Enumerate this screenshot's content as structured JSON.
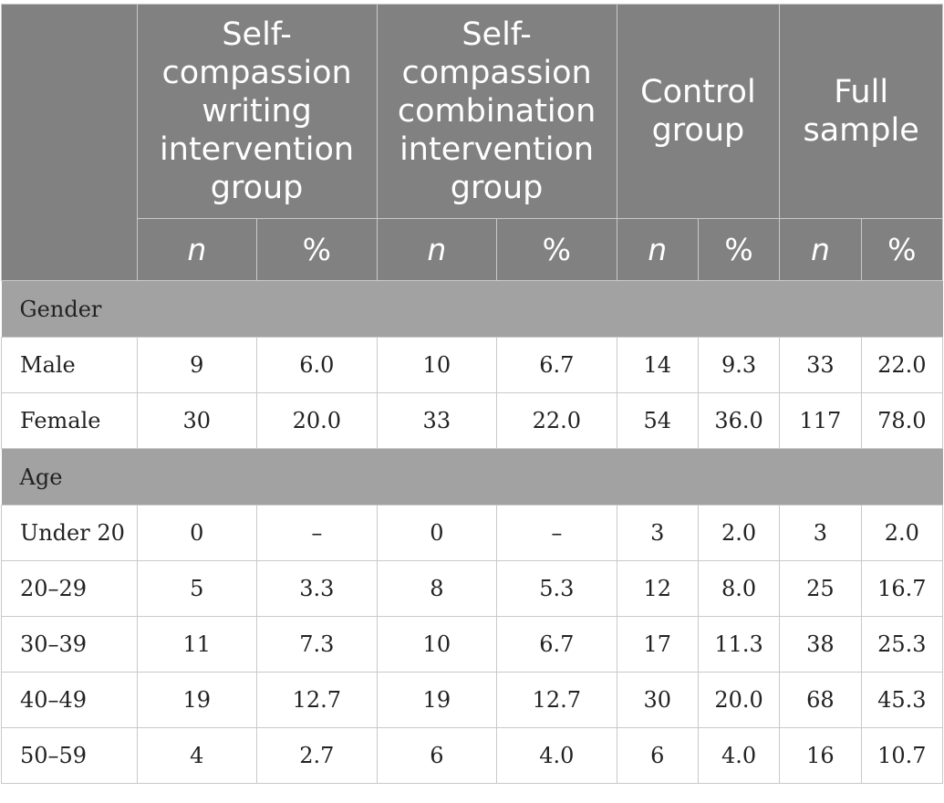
{
  "table": {
    "group_headers": [
      "Self-compassion writing intervention group",
      "Self-compassion combination intervention group",
      "Control group",
      "Full sample"
    ],
    "sub_headers": [
      "n",
      "%",
      "n",
      "%",
      "n",
      "%",
      "n",
      "%"
    ],
    "sections": [
      {
        "title": "Gender",
        "rows": [
          {
            "label": "Male",
            "cells": [
              "9",
              "6.0",
              "10",
              "6.7",
              "14",
              "9.3",
              "33",
              "22.0"
            ]
          },
          {
            "label": "Female",
            "cells": [
              "30",
              "20.0",
              "33",
              "22.0",
              "54",
              "36.0",
              "117",
              "78.0"
            ]
          }
        ]
      },
      {
        "title": "Age",
        "rows": [
          {
            "label": "Under 20",
            "cells": [
              "0",
              "–",
              "0",
              "–",
              "3",
              "2.0",
              "3",
              "2.0"
            ]
          },
          {
            "label": "20–29",
            "cells": [
              "5",
              "3.3",
              "8",
              "5.3",
              "12",
              "8.0",
              "25",
              "16.7"
            ]
          },
          {
            "label": "30–39",
            "cells": [
              "11",
              "7.3",
              "10",
              "6.7",
              "17",
              "11.3",
              "38",
              "25.3"
            ]
          },
          {
            "label": "40–49",
            "cells": [
              "19",
              "12.7",
              "19",
              "12.7",
              "30",
              "20.0",
              "68",
              "45.3"
            ]
          },
          {
            "label": "50–59",
            "cells": [
              "4",
              "2.7",
              "6",
              "4.0",
              "6",
              "4.0",
              "16",
              "10.7"
            ]
          }
        ]
      }
    ]
  }
}
